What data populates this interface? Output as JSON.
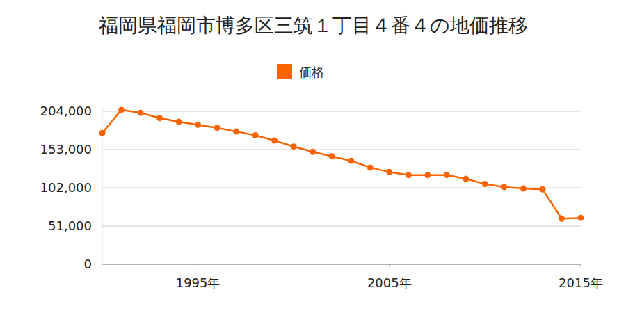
{
  "chart_data": {
    "type": "line",
    "title": "福岡県福岡市博多区三筑１丁目４番４の地価推移",
    "x": [
      1990,
      1991,
      1992,
      1993,
      1994,
      1995,
      1996,
      1997,
      1998,
      1999,
      2000,
      2001,
      2002,
      2003,
      2004,
      2005,
      2006,
      2007,
      2008,
      2009,
      2010,
      2011,
      2012,
      2013,
      2014,
      2015
    ],
    "series": [
      {
        "name": "価格",
        "color": "#f96400",
        "marker": "circle",
        "values": [
          175000,
          206000,
          202000,
          195000,
          190000,
          186000,
          182000,
          177000,
          172000,
          165000,
          157000,
          150000,
          144000,
          138000,
          129000,
          123000,
          119000,
          119000,
          119000,
          114000,
          107000,
          103000,
          101000,
          100000,
          61000,
          62000
        ]
      }
    ],
    "xlim": [
      1990,
      2015
    ],
    "xticks": [
      {
        "value": 1995,
        "label": "1995年"
      },
      {
        "value": 2005,
        "label": "2005年"
      },
      {
        "value": 2015,
        "label": "2015年"
      }
    ],
    "ylim": [
      0,
      210000
    ],
    "yticks": [
      {
        "value": 0,
        "label": "0"
      },
      {
        "value": 51000,
        "label": "51,000"
      },
      {
        "value": 102000,
        "label": "102,000"
      },
      {
        "value": 153000,
        "label": "153,000"
      },
      {
        "value": 204000,
        "label": "204,000"
      }
    ],
    "grid": true,
    "legend": "top"
  }
}
